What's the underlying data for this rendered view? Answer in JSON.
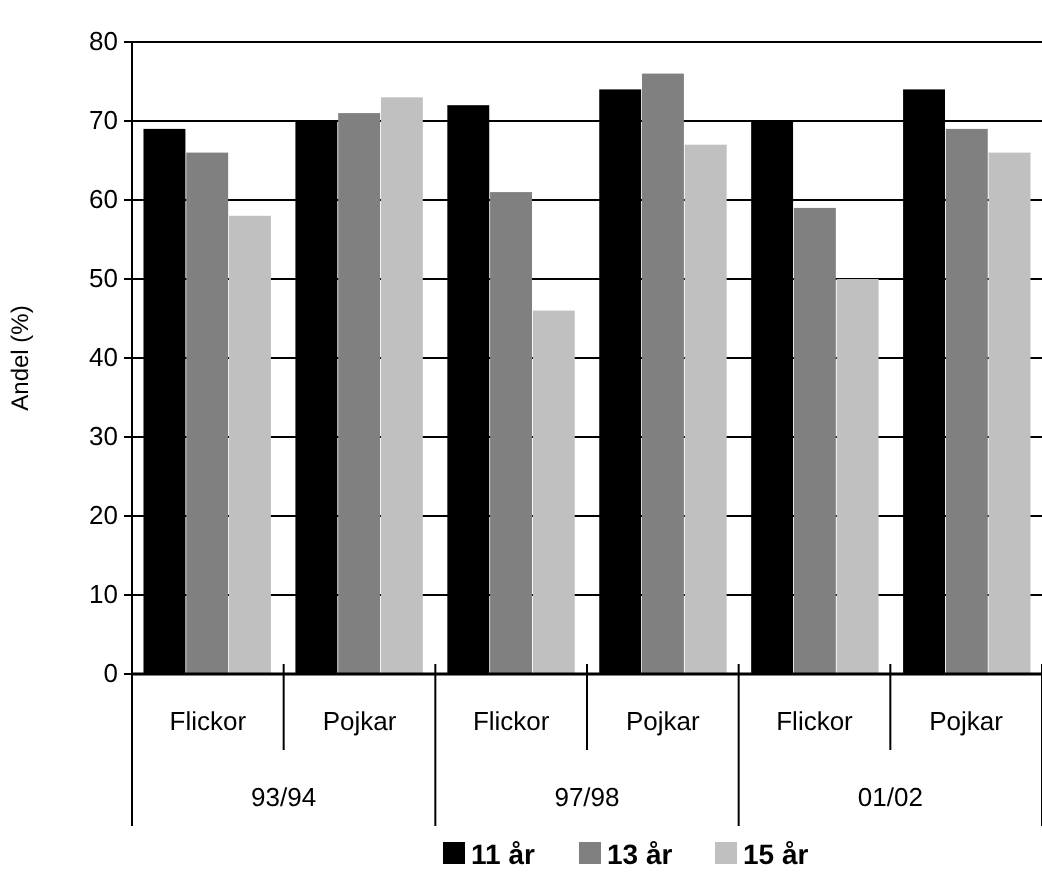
{
  "chart_data": {
    "type": "bar",
    "ylabel": "Andel (%)",
    "categories": [
      "Flickor",
      "Pojkar",
      "Flickor",
      "Pojkar",
      "Flickor",
      "Pojkar"
    ],
    "series": [
      {
        "name": "11 år",
        "color": "#000000",
        "values": [
          69,
          70,
          72,
          74,
          70,
          74
        ]
      },
      {
        "name": "13 år",
        "color": "#808080",
        "values": [
          66,
          71,
          61,
          76,
          59,
          69
        ]
      },
      {
        "name": "15 år",
        "color": "#c0c0c0",
        "values": [
          58,
          73,
          46,
          67,
          50,
          66
        ]
      }
    ],
    "annotations": [
      "93/94",
      "97/98",
      "01/02"
    ],
    "ylim": [
      0,
      80
    ],
    "yticks": [
      0,
      10,
      20,
      30,
      40,
      50,
      60,
      70,
      80
    ],
    "grid": "y",
    "legend": "bottom"
  }
}
